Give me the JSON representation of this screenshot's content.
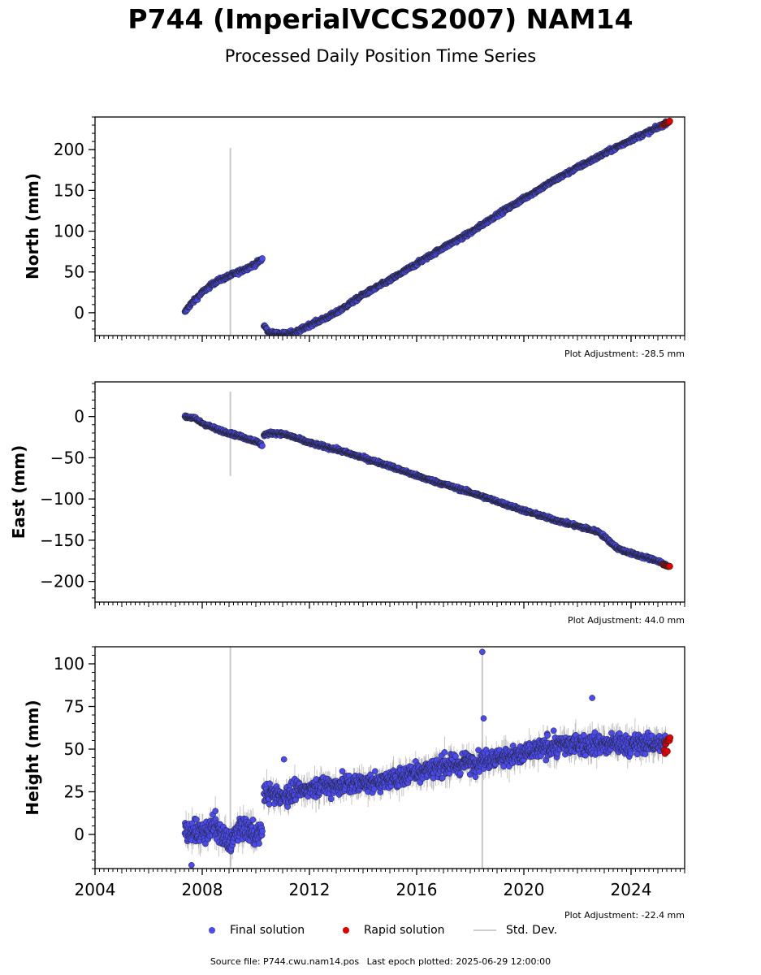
{
  "page": {
    "title": "P744 (ImperialVCCS2007) NAM14",
    "subtitle": "Processed Daily Position Time Series"
  },
  "legend": {
    "final_label": "Final solution",
    "rapid_label": "Rapid solution",
    "std_label": "Std. Dev."
  },
  "footer": {
    "source": "Source file: P744.cwu.nam14.pos",
    "last_epoch": "Last epoch plotted: 2025-06-29 12:00:00"
  },
  "colors": {
    "final": "#4a4af0",
    "rapid": "#e00000",
    "std": "#c8c8c8",
    "marker_edge": "#222222"
  },
  "chart_data": [
    {
      "type": "scatter",
      "ylabel": "North (mm)",
      "xlim": [
        2004.0,
        2026.0
      ],
      "ylim": [
        -28,
        240
      ],
      "yticks": [
        0,
        50,
        100,
        150,
        200
      ],
      "ytick_labels": [
        "0",
        "50",
        "100",
        "150",
        "200"
      ],
      "xtick_labels": [],
      "adjustment": "Plot Adjustment: -28.5 mm",
      "std_spike": {
        "x": 2009.05,
        "y": [
          -28,
          202
        ]
      },
      "series": [
        {
          "segment": 1,
          "role": "final",
          "x": [
            2007.35,
            2007.5,
            2008.0,
            2008.5,
            2009.0,
            2009.5,
            2010.0,
            2010.25
          ],
          "y": [
            0,
            8,
            25,
            38,
            45,
            52,
            60,
            66
          ],
          "noise": 3
        },
        {
          "segment": 2,
          "role": "final",
          "x": [
            2010.3,
            2010.5,
            2011.0,
            2011.5,
            2012.0,
            2012.5,
            2013.0,
            2014.0,
            2015.0,
            2016.0,
            2017.0,
            2018.0,
            2019.0,
            2020.0,
            2021.0,
            2022.0,
            2023.0,
            2024.0,
            2025.0,
            2025.3
          ],
          "y": [
            -15,
            -25,
            -26,
            -24,
            -15,
            -8,
            0,
            22,
            40,
            60,
            80,
            98,
            120,
            140,
            160,
            178,
            195,
            212,
            227,
            232
          ],
          "noise": 3
        },
        {
          "segment": 3,
          "role": "rapid",
          "x": [
            2025.2,
            2025.3,
            2025.45
          ],
          "y": [
            231,
            233,
            234
          ],
          "noise": 1
        }
      ]
    },
    {
      "type": "scatter",
      "ylabel": "East (mm)",
      "xlim": [
        2004.0,
        2026.0
      ],
      "ylim": [
        -225,
        42
      ],
      "yticks": [
        0,
        -50,
        -100,
        -150,
        -200
      ],
      "ytick_labels": [
        "0",
        "−50",
        "−100",
        "−150",
        "−200"
      ],
      "xtick_labels": [],
      "adjustment": "Plot Adjustment: 44.0 mm",
      "std_spike": {
        "x": 2009.05,
        "y": [
          -72,
          30
        ]
      },
      "series": [
        {
          "segment": 1,
          "role": "final",
          "x": [
            2007.35,
            2007.7,
            2008.0,
            2008.5,
            2009.0,
            2009.5,
            2010.0,
            2010.25
          ],
          "y": [
            0,
            -2,
            -8,
            -15,
            -20,
            -25,
            -30,
            -35
          ],
          "noise": 2.5
        },
        {
          "segment": 2,
          "role": "final",
          "x": [
            2010.3,
            2010.6,
            2011.0,
            2011.5,
            2012.0,
            2013.0,
            2014.0,
            2015.0,
            2016.0,
            2017.0,
            2018.0,
            2019.0,
            2020.0,
            2021.0,
            2022.0,
            2022.8,
            2023.5,
            2024.0,
            2025.0,
            2025.3
          ],
          "y": [
            -22,
            -20,
            -21,
            -26,
            -32,
            -40,
            -50,
            -60,
            -72,
            -82,
            -92,
            -103,
            -114,
            -124,
            -133,
            -140,
            -160,
            -166,
            -175,
            -180
          ],
          "noise": 2.5
        },
        {
          "segment": 3,
          "role": "rapid",
          "x": [
            2025.2,
            2025.3,
            2025.45
          ],
          "y": [
            -180,
            -181,
            -182
          ],
          "noise": 1
        }
      ]
    },
    {
      "type": "scatter",
      "ylabel": "Height (mm)",
      "xlim": [
        2004.0,
        2026.0
      ],
      "ylim": [
        -20,
        110
      ],
      "yticks": [
        0,
        25,
        50,
        75,
        100
      ],
      "ytick_labels": [
        "0",
        "25",
        "50",
        "75",
        "100"
      ],
      "xticks": [
        2004,
        2008,
        2012,
        2016,
        2020,
        2024
      ],
      "xtick_labels": [
        "2004",
        "2008",
        "2012",
        "2016",
        "2020",
        "2024"
      ],
      "adjustment": "Plot Adjustment: -22.4 mm",
      "std_spike": {
        "x": 2009.05,
        "y": [
          -20,
          110
        ]
      },
      "std_spike2": {
        "x": 2018.45,
        "y": [
          -20,
          107
        ]
      },
      "series": [
        {
          "segment": 1,
          "role": "final",
          "x": [
            2007.35,
            2008.0,
            2008.5,
            2009.0,
            2009.5,
            2010.0,
            2010.25
          ],
          "y": [
            3,
            0,
            5,
            -5,
            5,
            0,
            2
          ],
          "noise": 8
        },
        {
          "segment": 2,
          "role": "final",
          "x": [
            2010.3,
            2011.0,
            2012.0,
            2013.0,
            2014.0,
            2015.0,
            2016.0,
            2017.0,
            2018.0,
            2019.0,
            2020.0,
            2021.0,
            2022.0,
            2023.0,
            2024.0,
            2025.0,
            2025.3
          ],
          "y": [
            25,
            22,
            28,
            29,
            30,
            31,
            37,
            40,
            42,
            45,
            47,
            52,
            53,
            53,
            53,
            53,
            53
          ],
          "noise": 7
        },
        {
          "segment": 3,
          "role": "rapid",
          "x": [
            2025.25,
            2025.35,
            2025.45
          ],
          "y": [
            50,
            53,
            55
          ],
          "noise": 5
        }
      ],
      "outliers": {
        "x": [
          2018.45,
          2018.5,
          2007.6,
          2022.55,
          2011.05
        ],
        "y": [
          107,
          68,
          -18,
          80,
          44
        ]
      }
    }
  ]
}
